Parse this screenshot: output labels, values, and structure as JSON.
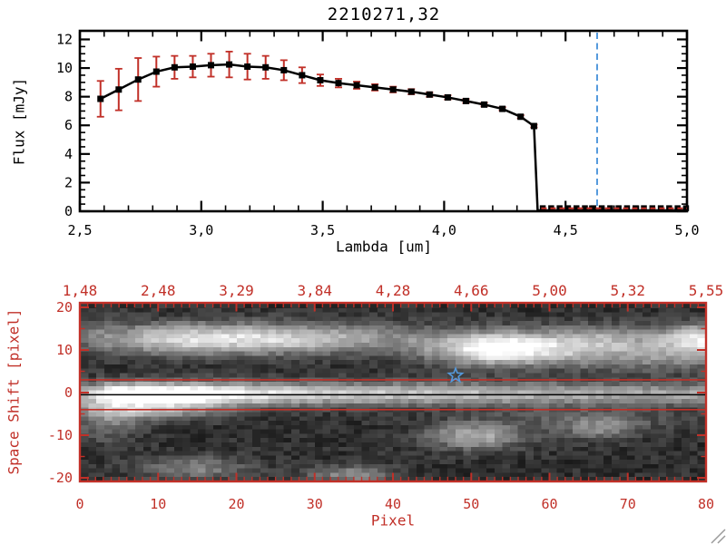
{
  "colors": {
    "background": "#ffffff",
    "axis_black": "#000000",
    "axis_red": "#c13028",
    "error_bar_red": "#c13028",
    "reference_blue": "#559add",
    "grip_gray": "#9a9a9a"
  },
  "chart_data": [
    {
      "type": "line",
      "title": "2210271.32",
      "title_display": "2210271,32",
      "xlabel": "Lambda [um]",
      "ylabel": "Flux [mJy]",
      "xlim": [
        2.5,
        5.0
      ],
      "ylim": [
        0,
        12.6
      ],
      "grid": "off",
      "x_ticks": {
        "values": [
          2.5,
          3.0,
          3.5,
          4.0,
          4.5,
          5.0
        ],
        "labels": [
          "2,5",
          "3,0",
          "3,5",
          "4,0",
          "4,5",
          "5,0"
        ],
        "minor_step": 0.1
      },
      "y_ticks": {
        "values": [
          0,
          2,
          4,
          6,
          8,
          10,
          12
        ],
        "labels": [
          "0",
          "2",
          "4",
          "6",
          "8",
          "10",
          "12"
        ],
        "minor_step": 0.5
      },
      "series": [
        {
          "name": "spectrum",
          "marker": "filled-square",
          "line_color": "#000000",
          "error_color": "#c13028",
          "x": [
            2.585,
            2.66,
            2.74,
            2.815,
            2.89,
            2.965,
            3.04,
            3.115,
            3.19,
            3.265,
            3.34,
            3.415,
            3.49,
            3.565,
            3.64,
            3.715,
            3.79,
            3.865,
            3.94,
            4.015,
            4.09,
            4.165,
            4.24,
            4.315,
            4.37
          ],
          "y": [
            7.85,
            8.5,
            9.2,
            9.75,
            10.05,
            10.1,
            10.2,
            10.25,
            10.1,
            10.05,
            9.85,
            9.5,
            9.15,
            8.95,
            8.8,
            8.65,
            8.5,
            8.35,
            8.15,
            7.95,
            7.7,
            7.45,
            7.15,
            6.6,
            5.95
          ],
          "yerr": [
            1.25,
            1.45,
            1.5,
            1.05,
            0.8,
            0.75,
            0.8,
            0.9,
            0.9,
            0.8,
            0.7,
            0.55,
            0.4,
            0.3,
            0.25,
            0.22,
            0.2,
            0.18,
            0.16,
            0.15,
            0.14,
            0.13,
            0.12,
            0.11,
            0.1
          ]
        }
      ],
      "drop_to_zero": {
        "x_start": 4.37,
        "x_end": 4.385
      },
      "zero_flux_region": {
        "start": 4.4,
        "end": 5.0,
        "value": 0,
        "marker_step": 0.0347
      },
      "reference_line": {
        "x": 4.63,
        "style": "dashed",
        "color": "#559add"
      }
    },
    {
      "type": "heatmap",
      "xlabel": "Pixel",
      "ylabel": "Space Shift [pixel]",
      "xlim": [
        0,
        80
      ],
      "ylim": [
        -20.9,
        21.1
      ],
      "x_ticks": {
        "values": [
          0,
          10,
          20,
          30,
          40,
          50,
          60,
          70,
          80
        ],
        "labels": [
          "0",
          "10",
          "20",
          "30",
          "40",
          "50",
          "60",
          "70",
          "80"
        ],
        "minor_step": 1
      },
      "y_ticks": {
        "values": [
          20,
          10,
          0,
          -10,
          -20
        ],
        "labels": [
          "20",
          "10",
          "0",
          "-10",
          "-20"
        ],
        "minor_step": 5
      },
      "top_axis": {
        "wavelength_values": [
          1.48,
          2.48,
          3.29,
          3.84,
          4.28,
          4.66,
          5.0,
          5.32,
          5.55
        ],
        "labels": [
          "1,48",
          "2,48",
          "3,29",
          "3,84",
          "4,28",
          "4,66",
          "5,00",
          "5,32",
          "5,55"
        ]
      },
      "aperture_lines": {
        "upper": 3,
        "lower": -4,
        "color": "#c13028"
      },
      "trace_center_line": {
        "y": -0.5,
        "color": "#000000"
      },
      "star_marker": {
        "x": 48,
        "y": 4,
        "color": "#559add"
      },
      "image": {
        "cols": 80,
        "rows": 41,
        "y_top": 20,
        "y_bottom": -20,
        "seed": 71,
        "background": {
          "base": 26,
          "noise": 42
        },
        "bands": [
          {
            "name": "central-spectral-trace",
            "y0": -0.3,
            "sigma": 1.9,
            "amp_profile": [
              [
                0,
                120
              ],
              [
                2,
                185
              ],
              [
                4,
                250
              ],
              [
                14,
                255
              ],
              [
                20,
                200
              ],
              [
                28,
                165
              ],
              [
                40,
                150
              ],
              [
                55,
                135
              ],
              [
                68,
                120
              ],
              [
                80,
                115
              ]
            ]
          },
          {
            "name": "upper-companion-trace",
            "y0": 12.4,
            "sigma": 2.5,
            "amp_profile": [
              [
                0,
                25
              ],
              [
                4,
                60
              ],
              [
                8,
                150
              ],
              [
                13,
                185
              ],
              [
                22,
                185
              ],
              [
                30,
                150
              ],
              [
                36,
                110
              ],
              [
                42,
                70
              ],
              [
                47,
                40
              ],
              [
                60,
                35
              ],
              [
                80,
                30
              ]
            ]
          }
        ],
        "blobs": [
          {
            "x": 53,
            "y": 10,
            "sx": 6,
            "sy": 2.6,
            "amp": 215
          },
          {
            "x": 66,
            "y": 11.5,
            "sx": 5,
            "sy": 2.5,
            "amp": 100
          },
          {
            "x": 79,
            "y": 12,
            "sx": 4,
            "sy": 2.6,
            "amp": 160
          },
          {
            "x": 72,
            "y": 7.5,
            "sx": 9,
            "sy": 2,
            "amp": 70
          },
          {
            "x": 50,
            "y": -10,
            "sx": 4.5,
            "sy": 2.2,
            "amp": 125
          },
          {
            "x": 66,
            "y": -8.5,
            "sx": 3.5,
            "sy": 1.8,
            "amp": 80
          },
          {
            "x": 64,
            "y": -6,
            "sx": 9,
            "sy": 1.8,
            "amp": 45
          },
          {
            "x": 14,
            "y": -17.5,
            "sx": 5,
            "sy": 2,
            "amp": 80
          },
          {
            "x": 34,
            "y": -19,
            "sx": 4,
            "sy": 1.5,
            "amp": 90
          },
          {
            "x": 3,
            "y": -7,
            "sx": 3,
            "sy": 3,
            "amp": 65
          },
          {
            "x": 8,
            "y": -4,
            "sx": 7,
            "sy": 1.6,
            "amp": 110
          },
          {
            "x": 2,
            "y": 13,
            "sx": 2.5,
            "sy": 3,
            "amp": 55
          }
        ]
      }
    }
  ]
}
